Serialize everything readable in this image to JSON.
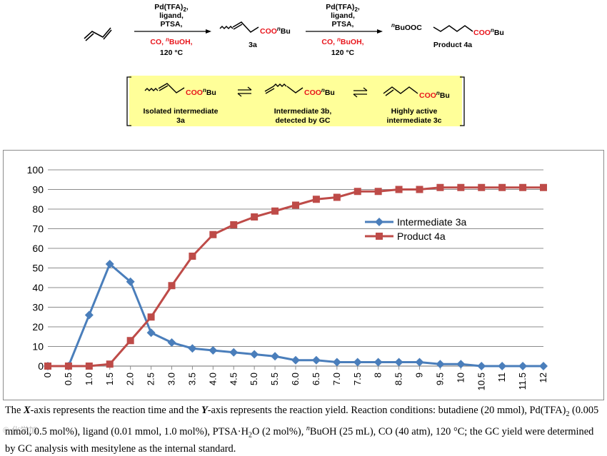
{
  "scheme": {
    "step1": {
      "conditions": [
        "Pd(TFA)",
        "ligand,",
        "PTSA,"
      ],
      "subscript": "2",
      "red": "CO, ",
      "n": "n",
      "buoh": "BuOH,",
      "temp": "120 °C"
    },
    "step2": {
      "conditions": [
        "Pd(TFA)",
        "ligand,",
        "PTSA,"
      ],
      "subscript": "2",
      "red": "CO, ",
      "n": "n",
      "buoh": "BuOH,",
      "temp": "120 °C"
    },
    "coo": "COO",
    "bu": "Bu",
    "n": "n",
    "bu_ooc": "BuOOC",
    "label_3a": "3a",
    "label_4a": "Product 4a",
    "box": {
      "i1_line1": "Isolated intermediate",
      "i1_line2": "3a",
      "i2_line1": "Intermediate 3b,",
      "i2_line2": "detected by GC",
      "i3_line1": "Highly active",
      "i3_line2": "intermediate 3c"
    },
    "colors": {
      "red": "#e8141b",
      "box_fill": "#ffff99"
    }
  },
  "chart_data": {
    "type": "line",
    "categories": [
      "0",
      "0.5",
      "1.0",
      "1.5",
      "2.0",
      "2.5",
      "3.0",
      "3.5",
      "4.0",
      "4.5",
      "5.0",
      "5.5",
      "6.0",
      "6.5",
      "7.0",
      "7.5",
      "8",
      "8.5",
      "9",
      "9.5",
      "10",
      "10.5",
      "11",
      "11.5",
      "12"
    ],
    "series": [
      {
        "name": "Intermediate 3a",
        "color": "#4a7ebb",
        "marker": "diamond",
        "values": [
          0,
          0,
          26,
          52,
          43,
          17,
          12,
          9,
          8,
          7,
          6,
          5,
          3,
          3,
          2,
          2,
          2,
          2,
          2,
          1,
          1,
          0,
          0,
          0,
          0
        ]
      },
      {
        "name": "Product 4a",
        "color": "#be4b48",
        "marker": "square",
        "values": [
          0,
          0,
          0,
          1,
          13,
          25,
          41,
          56,
          67,
          72,
          76,
          79,
          82,
          85,
          86,
          89,
          89,
          90,
          90,
          91,
          91,
          91,
          91,
          91,
          91
        ]
      }
    ],
    "ylim": [
      0,
      100
    ],
    "yticks": [
      0,
      10,
      20,
      30,
      40,
      50,
      60,
      70,
      80,
      90,
      100
    ],
    "xlabel": "",
    "ylabel": "",
    "legend": "top-right",
    "colors": {
      "grid": "#8c8c8c",
      "axis": "#8c8c8c"
    }
  },
  "caption": {
    "t1": "The ",
    "x": "X",
    "t2": "-axis represents the reaction time and the ",
    "y": "Y",
    "t3": "-axis represents the reaction yield. Reaction conditions: butadiene (20 mmol), Pd(TFA)",
    "sub2": "2",
    "t4": " (0.005 mmol, 0.5 mol%), ligand (0.01 mmol, 1.0 mol%), PTSA·H",
    "sub2b": "2",
    "t5": "O (2 mol%), ",
    "n": "n",
    "t6": "BuOH (25 mL), CO (40 atm), 120 °C; the GC yield were determined by GC analysis with mesitylene as the internal standard."
  },
  "watermark": "© 化学加"
}
